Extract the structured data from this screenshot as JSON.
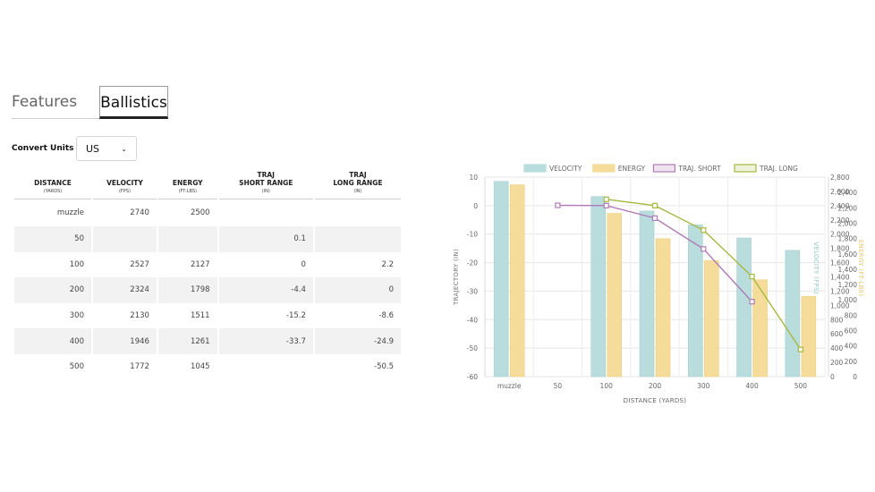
{
  "tabs": [
    {
      "label": "Features",
      "active": false
    },
    {
      "label": "Ballistics",
      "active": true
    }
  ],
  "convert": {
    "label": "Convert Units",
    "selected": "US"
  },
  "table": {
    "headers": [
      {
        "title": "DISTANCE",
        "unit": "(YARDS)"
      },
      {
        "title": "VELOCITY",
        "unit": "(FPS)"
      },
      {
        "title": "ENERGY",
        "unit": "(FT-LBS)"
      },
      {
        "title": "TRAJ SHORT RANGE",
        "title_l1": "TRAJ",
        "title_l2": "SHORT RANGE",
        "unit": "(IN)"
      },
      {
        "title": "TRAJ LONG RANGE",
        "title_l1": "TRAJ",
        "title_l2": "LONG RANGE",
        "unit": "(IN)"
      }
    ],
    "rows": [
      [
        "muzzle",
        "2740",
        "2500",
        "",
        ""
      ],
      [
        "50",
        "",
        "",
        "0.1",
        ""
      ],
      [
        "100",
        "2527",
        "2127",
        "0",
        "2.2"
      ],
      [
        "200",
        "2324",
        "1798",
        "-4.4",
        "0"
      ],
      [
        "300",
        "2130",
        "1511",
        "-15.2",
        "-8.6"
      ],
      [
        "400",
        "1946",
        "1261",
        "-33.7",
        "-24.9"
      ],
      [
        "500",
        "1772",
        "1045",
        "",
        "-50.5"
      ]
    ]
  },
  "chart_data": {
    "type": "bar",
    "categories": [
      "muzzle",
      "50",
      "100",
      "200",
      "300",
      "400",
      "500"
    ],
    "xlabel": "DISTANCE (YARDS)",
    "axes": {
      "trajectory": {
        "label": "TRAJECTORY (IN)",
        "range": [
          -60,
          10
        ],
        "ticks": [
          10,
          0,
          -10,
          -20,
          -30,
          -40,
          -50,
          -60
        ],
        "side": "left"
      },
      "velocity": {
        "label": "VELOCITY (FPS)",
        "range": [
          0,
          2800
        ],
        "ticks": [
          0,
          200,
          400,
          600,
          800,
          1000,
          1200,
          1400,
          1600,
          1800,
          2000,
          2200,
          2400,
          2600,
          2800
        ],
        "tick_labels": [
          "0",
          "200",
          "400",
          "600",
          "800",
          "1,000",
          "1,200",
          "1,400",
          "1,600",
          "1,800",
          "2,000",
          "2,200",
          "2,400",
          "2,600",
          "2,800"
        ],
        "side": "right"
      },
      "energy": {
        "label": "ENERGY (FT-LBS)",
        "range": [
          0,
          2600
        ],
        "ticks": [
          0,
          200,
          400,
          600,
          800,
          1000,
          1200,
          1400,
          1600,
          1800,
          2000,
          2200,
          2400
        ],
        "tick_labels": [
          "0",
          "200",
          "400",
          "600",
          "800",
          "1,000",
          "1,200",
          "1,400",
          "1,600",
          "1,800",
          "2,000",
          "2,200",
          "2,400"
        ],
        "side": "right"
      }
    },
    "series": [
      {
        "name": "VELOCITY",
        "kind": "bar",
        "axis": "velocity",
        "color": "#b9dcdc",
        "values": [
          2740,
          null,
          2527,
          2324,
          2130,
          1946,
          1772
        ]
      },
      {
        "name": "ENERGY",
        "kind": "bar",
        "axis": "energy",
        "color": "#f5dc9a",
        "values": [
          2500,
          null,
          2127,
          1798,
          1511,
          1261,
          1045
        ]
      },
      {
        "name": "TRAJ. SHORT",
        "kind": "line",
        "axis": "trajectory",
        "color": "#b07ab5",
        "values": [
          null,
          0.1,
          0,
          -4.4,
          -15.2,
          -33.7,
          null
        ]
      },
      {
        "name": "TRAJ. LONG",
        "kind": "line",
        "axis": "trajectory",
        "color": "#a7b840",
        "values": [
          null,
          null,
          2.2,
          0,
          -8.6,
          -24.9,
          -50.5
        ]
      }
    ],
    "legend_position": "top",
    "grid": true
  }
}
